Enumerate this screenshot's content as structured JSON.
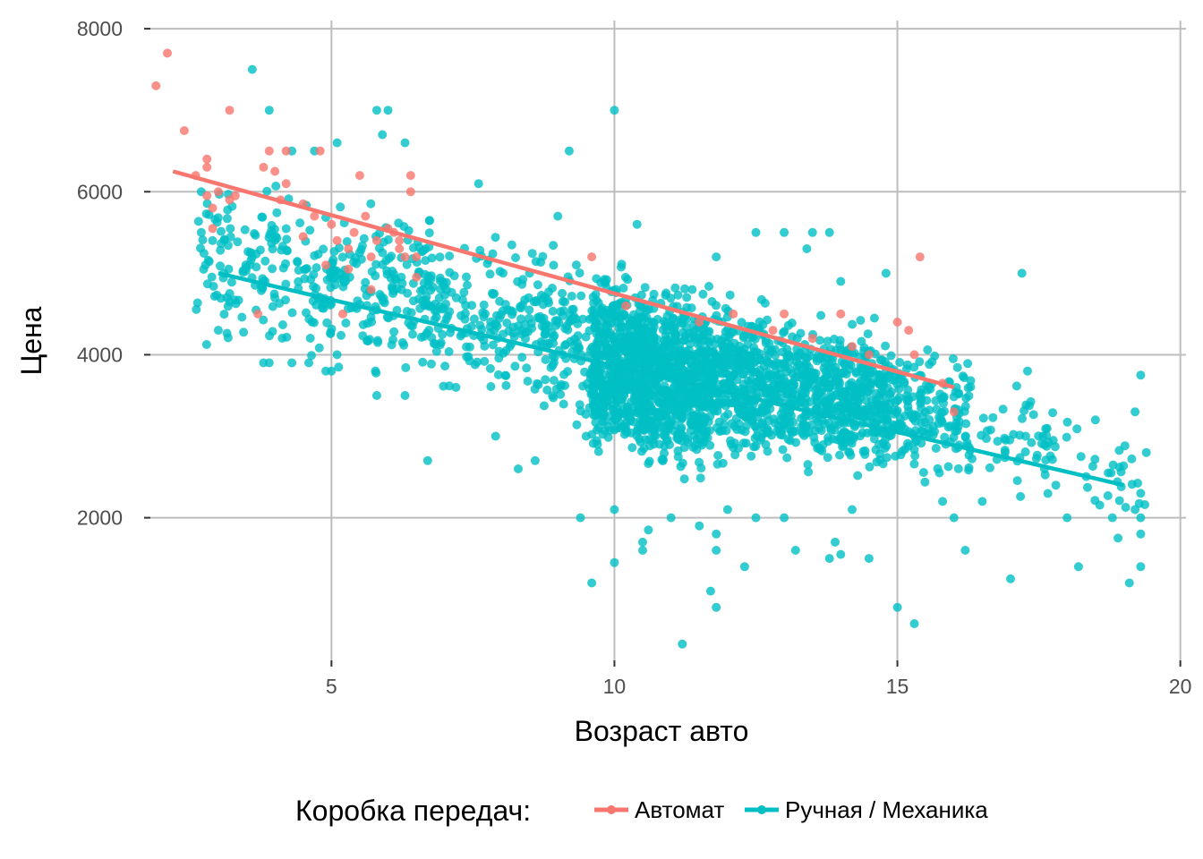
{
  "chart_data": {
    "type": "scatter",
    "xlabel": "Возраст авто",
    "ylabel": "Цена",
    "xlim": [
      1.8,
      20.1
    ],
    "ylim": [
      250,
      8100
    ],
    "x_ticks": [
      5,
      10,
      15,
      20
    ],
    "y_ticks": [
      2000,
      4000,
      6000,
      8000
    ],
    "grid": true,
    "legend": {
      "position": "bottom",
      "title": "Коробка передач:",
      "entries": [
        {
          "label": "Автомат",
          "color": "#F8766D"
        },
        {
          "label": "Ручная / Механика",
          "color": "#00BFC4"
        }
      ]
    },
    "series": [
      {
        "name": "Автомат",
        "color": "#F8766D",
        "points": [
          [
            1.9,
            7300
          ],
          [
            2.1,
            7700
          ],
          [
            2.4,
            6750
          ],
          [
            2.6,
            6200
          ],
          [
            2.8,
            6300
          ],
          [
            2.8,
            6400
          ],
          [
            2.8,
            5950
          ],
          [
            2.9,
            5800
          ],
          [
            2.9,
            5550
          ],
          [
            3.0,
            6000
          ],
          [
            3.2,
            5900
          ],
          [
            3.3,
            5950
          ],
          [
            3.2,
            7000
          ],
          [
            3.7,
            4500
          ],
          [
            3.8,
            6300
          ],
          [
            3.9,
            6500
          ],
          [
            4.0,
            6250
          ],
          [
            4.2,
            6100
          ],
          [
            4.2,
            6500
          ],
          [
            4.5,
            5850
          ],
          [
            4.7,
            5700
          ],
          [
            4.8,
            6500
          ],
          [
            4.9,
            5100
          ],
          [
            5.0,
            5600
          ],
          [
            5.1,
            5400
          ],
          [
            5.3,
            5300
          ],
          [
            5.4,
            5500
          ],
          [
            5.5,
            6200
          ],
          [
            5.6,
            5700
          ],
          [
            5.7,
            5200
          ],
          [
            5.7,
            4800
          ],
          [
            5.8,
            5400
          ],
          [
            6.0,
            5550
          ],
          [
            6.1,
            5500
          ],
          [
            6.2,
            5400
          ],
          [
            6.3,
            5200
          ],
          [
            6.4,
            6000
          ],
          [
            6.4,
            6200
          ],
          [
            6.5,
            4950
          ],
          [
            6.5,
            5200
          ],
          [
            4.1,
            5900
          ],
          [
            4.5,
            5450
          ],
          [
            5.2,
            4500
          ],
          [
            5.3,
            5050
          ],
          [
            6.2,
            5300
          ],
          [
            9.6,
            5200
          ],
          [
            10.2,
            4600
          ],
          [
            11.5,
            4400
          ],
          [
            12.1,
            4500
          ],
          [
            13.0,
            4500
          ],
          [
            14.0,
            4500
          ],
          [
            14.2,
            4100
          ],
          [
            14.5,
            4000
          ],
          [
            15.0,
            4400
          ],
          [
            15.2,
            4300
          ],
          [
            15.3,
            4000
          ],
          [
            15.4,
            5200
          ],
          [
            15.8,
            3650
          ],
          [
            16.0,
            3300
          ],
          [
            12.8,
            4300
          ],
          [
            13.5,
            4200
          ]
        ],
        "fit": {
          "x_start": 2.2,
          "x_end": 16.0,
          "y_start": 6250,
          "y_end": 3600
        }
      },
      {
        "name": "Ручная / Механика",
        "color": "#00BFC4",
        "fit": {
          "x_start": 3.0,
          "x_end": 19.0,
          "y_start": 5000,
          "y_end": 2400
        },
        "distribution": [
          {
            "x_min": 2.6,
            "x_max": 4.6,
            "y_min": 3800,
            "y_max": 6400,
            "count": 130
          },
          {
            "x_min": 4.6,
            "x_max": 6.8,
            "y_min": 3600,
            "y_max": 6100,
            "count": 200
          },
          {
            "x_min": 6.6,
            "x_max": 9.4,
            "y_min": 3300,
            "y_max": 5600,
            "count": 230
          },
          {
            "x_min": 8.7,
            "x_max": 9.6,
            "y_min": 2700,
            "y_max": 5000,
            "count": 60
          },
          {
            "x_min": 9.6,
            "x_max": 10.6,
            "y_min": 2400,
            "y_max": 5300,
            "count": 560
          },
          {
            "x_min": 10.5,
            "x_max": 11.7,
            "y_min": 2300,
            "y_max": 5100,
            "count": 620
          },
          {
            "x_min": 11.7,
            "x_max": 12.7,
            "y_min": 2400,
            "y_max": 4900,
            "count": 320
          },
          {
            "x_min": 12.7,
            "x_max": 13.8,
            "y_min": 2400,
            "y_max": 4700,
            "count": 300
          },
          {
            "x_min": 13.8,
            "x_max": 14.9,
            "y_min": 2300,
            "y_max": 4600,
            "count": 280
          },
          {
            "x_min": 14.6,
            "x_max": 16.3,
            "y_min": 2300,
            "y_max": 4300,
            "count": 200
          },
          {
            "x_min": 16.2,
            "x_max": 18.2,
            "y_min": 2100,
            "y_max": 3800,
            "count": 60
          },
          {
            "x_min": 18.2,
            "x_max": 19.4,
            "y_min": 1800,
            "y_max": 3300,
            "count": 25
          }
        ],
        "points": [
          [
            3.6,
            7500
          ],
          [
            3.9,
            7000
          ],
          [
            5.8,
            7000
          ],
          [
            6.0,
            7000
          ],
          [
            6.3,
            6600
          ],
          [
            5.9,
            6700
          ],
          [
            9.2,
            6500
          ],
          [
            10.0,
            7000
          ],
          [
            4.3,
            6500
          ],
          [
            4.7,
            6500
          ],
          [
            5.1,
            6600
          ],
          [
            7.6,
            6100
          ],
          [
            9.0,
            5700
          ],
          [
            8.5,
            5000
          ],
          [
            10.4,
            5600
          ],
          [
            11.8,
            5200
          ],
          [
            12.5,
            5500
          ],
          [
            13.0,
            5500
          ],
          [
            13.5,
            5500
          ],
          [
            13.8,
            5500
          ],
          [
            13.4,
            5300
          ],
          [
            14.0,
            4900
          ],
          [
            14.8,
            5000
          ],
          [
            17.2,
            5000
          ],
          [
            17.3,
            3800
          ],
          [
            18.5,
            3200
          ],
          [
            19.3,
            3750
          ],
          [
            19.4,
            2800
          ],
          [
            19.2,
            3300
          ],
          [
            19.3,
            2300
          ],
          [
            19.2,
            2100
          ],
          [
            19.3,
            2000
          ],
          [
            19.3,
            1800
          ],
          [
            19.3,
            1400
          ],
          [
            19.1,
            1200
          ],
          [
            18.9,
            1750
          ],
          [
            18.2,
            1400
          ],
          [
            18.0,
            2000
          ],
          [
            17.8,
            2400
          ],
          [
            17.0,
            1250
          ],
          [
            16.2,
            1600
          ],
          [
            16.0,
            2000
          ],
          [
            15.3,
            700
          ],
          [
            15.0,
            900
          ],
          [
            14.5,
            1500
          ],
          [
            14.0,
            1550
          ],
          [
            13.8,
            1500
          ],
          [
            13.2,
            1600
          ],
          [
            13.0,
            2000
          ],
          [
            12.5,
            2000
          ],
          [
            12.0,
            2100
          ],
          [
            11.8,
            1800
          ],
          [
            11.8,
            1600
          ],
          [
            11.8,
            900
          ],
          [
            11.7,
            1100
          ],
          [
            11.2,
            450
          ],
          [
            11.0,
            2000
          ],
          [
            10.5,
            1700
          ],
          [
            10.6,
            1850
          ],
          [
            10.0,
            1450
          ],
          [
            9.6,
            1200
          ],
          [
            9.4,
            2000
          ],
          [
            10.0,
            2100
          ],
          [
            10.5,
            1600
          ],
          [
            11.5,
            1900
          ],
          [
            12.3,
            1400
          ],
          [
            13.9,
            1700
          ],
          [
            14.2,
            2100
          ],
          [
            15.8,
            2200
          ],
          [
            16.5,
            2200
          ],
          [
            17.6,
            2600
          ],
          [
            18.8,
            2000
          ],
          [
            4.6,
            3900
          ],
          [
            4.9,
            3800
          ],
          [
            5.1,
            4000
          ],
          [
            5.0,
            3800
          ],
          [
            6.3,
            3500
          ],
          [
            5.8,
            3500
          ],
          [
            6.7,
            2700
          ],
          [
            7.2,
            3600
          ],
          [
            7.9,
            3000
          ],
          [
            8.3,
            2600
          ],
          [
            8.6,
            2700
          ],
          [
            9.5,
            3000
          ],
          [
            3.0,
            4300
          ],
          [
            3.2,
            4650
          ],
          [
            3.1,
            5000
          ],
          [
            2.9,
            5400
          ],
          [
            2.7,
            5500
          ],
          [
            2.7,
            6000
          ],
          [
            3.6,
            5200
          ],
          [
            3.8,
            3900
          ],
          [
            3.9,
            3900
          ],
          [
            4.3,
            3900
          ]
        ]
      }
    ]
  }
}
